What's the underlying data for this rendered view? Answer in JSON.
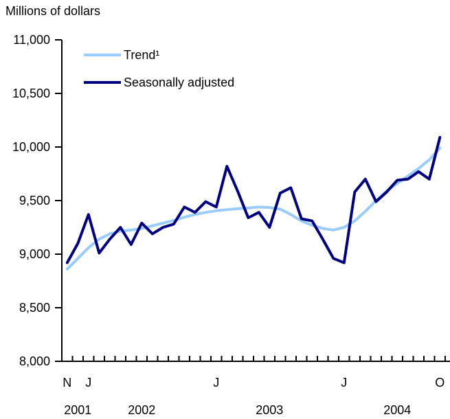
{
  "chart_data": {
    "type": "line",
    "unit_label": "Millions of dollars",
    "ylim": [
      8000,
      11000
    ],
    "y_ticks": [
      8000,
      8500,
      9000,
      9500,
      10000,
      10500,
      11000
    ],
    "y_tick_labels": [
      "8,000",
      "8,500",
      "9,000",
      "9,500",
      "10,000",
      "10,500",
      "11,000"
    ],
    "x": [
      "2001-11",
      "2001-12",
      "2002-01",
      "2002-02",
      "2002-03",
      "2002-04",
      "2002-05",
      "2002-06",
      "2002-07",
      "2002-08",
      "2002-09",
      "2002-10",
      "2002-11",
      "2002-12",
      "2003-01",
      "2003-02",
      "2003-03",
      "2003-04",
      "2003-05",
      "2003-06",
      "2003-07",
      "2003-08",
      "2003-09",
      "2003-10",
      "2003-11",
      "2003-12",
      "2004-01",
      "2004-02",
      "2004-03",
      "2004-04",
      "2004-05",
      "2004-06",
      "2004-07",
      "2004-08",
      "2004-09",
      "2004-10"
    ],
    "month_tick_labels": [
      {
        "x": "2001-11",
        "label": "N"
      },
      {
        "x": "2002-01",
        "label": "J"
      },
      {
        "x": "2003-01",
        "label": "J"
      },
      {
        "x": "2004-01",
        "label": "J"
      },
      {
        "x": "2004-10",
        "label": "O"
      }
    ],
    "year_labels": [
      {
        "x": "2001-12",
        "label": "2001"
      },
      {
        "x": "2002-06",
        "label": "2002"
      },
      {
        "x": "2003-06",
        "label": "2003"
      },
      {
        "x": "2004-06",
        "label": "2004"
      }
    ],
    "series": [
      {
        "name": "Trend¹",
        "color": "#99ccff",
        "values": [
          8860,
          8960,
          9060,
          9140,
          9190,
          9215,
          9225,
          9240,
          9265,
          9290,
          9315,
          9345,
          9370,
          9390,
          9405,
          9415,
          9425,
          9430,
          9440,
          9435,
          9420,
          9370,
          9310,
          9270,
          9240,
          9225,
          9250,
          9310,
          9400,
          9500,
          9590,
          9660,
          9730,
          9800,
          9880,
          9990
        ]
      },
      {
        "name": "Seasonally adjusted",
        "color": "#000080",
        "values": [
          8920,
          9100,
          9370,
          9010,
          9140,
          9250,
          9090,
          9290,
          9190,
          9250,
          9280,
          9440,
          9390,
          9490,
          9440,
          9820,
          9590,
          9340,
          9390,
          9250,
          9570,
          9620,
          9330,
          9310,
          9140,
          8960,
          8920,
          9580,
          9700,
          9490,
          9580,
          9690,
          9700,
          9770,
          9700,
          10090
        ]
      }
    ],
    "legend_position": "top-left",
    "grid": false
  }
}
